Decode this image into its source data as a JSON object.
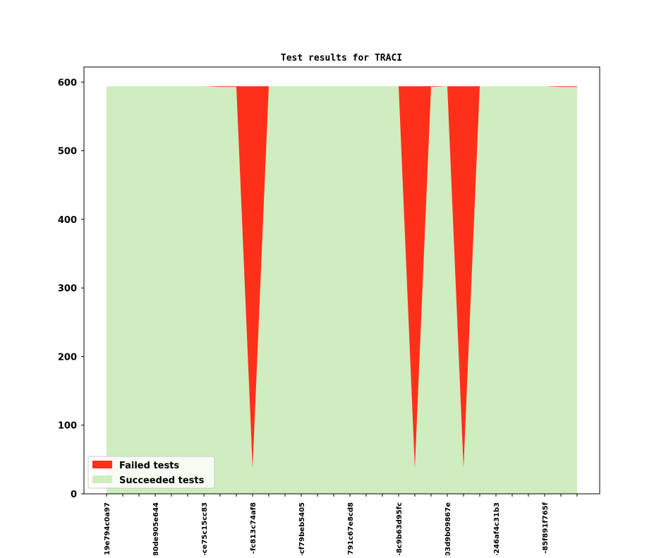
{
  "chart_data": {
    "type": "stacked_area",
    "title": "Test results for TRACI",
    "categories": [
      "19e794c0a97",
      null,
      null,
      "80de905e644",
      null,
      null,
      "-ce75c15cc83",
      null,
      null,
      "-fc813c74af8",
      null,
      null,
      "-cf79beb5405",
      null,
      null,
      "791c67e8cd8",
      null,
      null,
      "-8c9b63d95fc",
      null,
      null,
      "03d9b09867e",
      null,
      null,
      "-246af4c31b3",
      null,
      null,
      "-85f891f765f",
      null,
      null
    ],
    "series": [
      {
        "name": "Succeeded tests",
        "color": "#cfedbf",
        "values": [
          594,
          594,
          594,
          594,
          594,
          594,
          594,
          593,
          593,
          37,
          594,
          594,
          594,
          594,
          594,
          594,
          594,
          594,
          594,
          37,
          593,
          594,
          37,
          594,
          594,
          594,
          594,
          594,
          593,
          593
        ]
      },
      {
        "name": "Failed tests",
        "color": "#ff3019",
        "values": [
          0,
          0,
          0,
          0,
          0,
          0,
          0,
          1,
          1,
          557,
          0,
          0,
          0,
          0,
          0,
          0,
          0,
          0,
          0,
          557,
          1,
          0,
          557,
          0,
          0,
          0,
          0,
          0,
          1,
          1
        ]
      }
    ],
    "ylim": [
      0,
      622
    ],
    "yticks": [
      0,
      100,
      200,
      300,
      400,
      500,
      600
    ],
    "legend": "lower left"
  }
}
